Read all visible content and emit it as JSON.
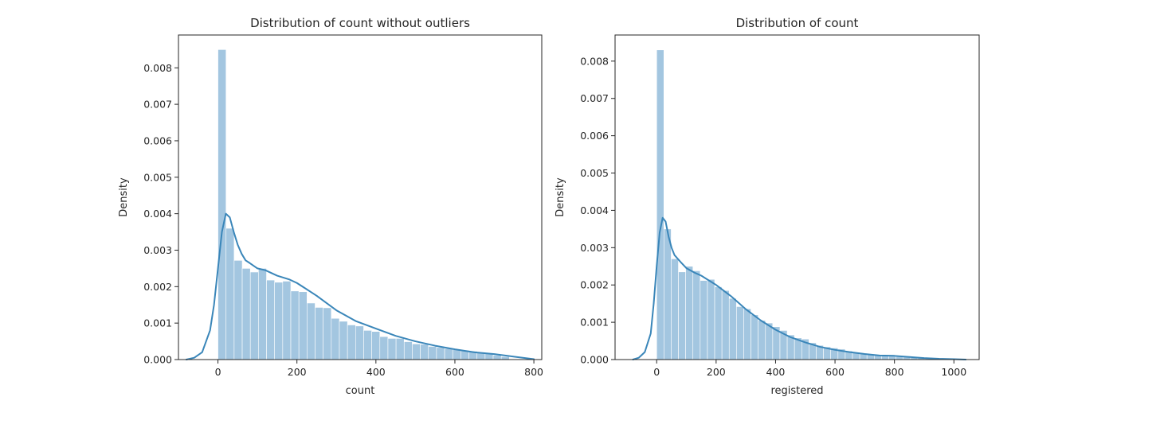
{
  "colors": {
    "bar": "#a3c6e0",
    "kde": "#3a86b9",
    "spine": "#262626",
    "text": "#262626"
  },
  "chart_data": [
    {
      "type": "histogram",
      "title": "Distribution of count without outliers",
      "xlabel": "count",
      "ylabel": "Density",
      "xlim": [
        -100,
        820
      ],
      "ylim": [
        0,
        0.0089
      ],
      "xticks": [
        0,
        200,
        400,
        600,
        800
      ],
      "yticks": [
        0.0,
        0.001,
        0.002,
        0.003,
        0.004,
        0.005,
        0.006,
        0.007,
        0.008
      ],
      "ytick_labels": [
        "0.000",
        "0.001",
        "0.002",
        "0.003",
        "0.004",
        "0.005",
        "0.006",
        "0.007",
        "0.008"
      ],
      "grid": false,
      "bin_edges": [
        0,
        20.5,
        41,
        61.5,
        82,
        102.5,
        123,
        143.5,
        164,
        184.5,
        205,
        225.5,
        246,
        266.5,
        287,
        307.5,
        328,
        348.5,
        369,
        389.5,
        410,
        430.5,
        451,
        471.5,
        492,
        512.5,
        533,
        553.5,
        574,
        594.5,
        615,
        635.5,
        656,
        676.5,
        697,
        717.5,
        738
      ],
      "bar_density": [
        0.0085,
        0.0036,
        0.00272,
        0.0025,
        0.0024,
        0.0025,
        0.00218,
        0.00212,
        0.00215,
        0.00188,
        0.00186,
        0.00155,
        0.00143,
        0.00142,
        0.00113,
        0.00105,
        0.00095,
        0.00092,
        0.0008,
        0.00077,
        0.00063,
        0.00058,
        0.00058,
        0.00049,
        0.00043,
        0.00042,
        0.00036,
        0.00033,
        0.0003,
        0.00027,
        0.00025,
        0.00023,
        0.0002,
        0.00016,
        0.00012,
        8e-05
      ],
      "kde": {
        "x": [
          -80,
          -60,
          -40,
          -20,
          -10,
          0,
          10,
          20,
          30,
          40,
          50,
          60,
          70,
          80,
          100,
          120,
          150,
          180,
          200,
          250,
          300,
          350,
          400,
          450,
          500,
          550,
          600,
          650,
          700,
          750,
          800
        ],
        "y": [
          0.0,
          5e-05,
          0.0002,
          0.0008,
          0.0015,
          0.0025,
          0.0035,
          0.004,
          0.0039,
          0.0035,
          0.00315,
          0.0029,
          0.00272,
          0.00265,
          0.0025,
          0.00245,
          0.0023,
          0.0022,
          0.0021,
          0.00175,
          0.00135,
          0.00105,
          0.00085,
          0.00065,
          0.0005,
          0.00038,
          0.00028,
          0.0002,
          0.00015,
          8e-05,
          1e-05
        ]
      }
    },
    {
      "type": "histogram",
      "title": "Distribution of count",
      "xlabel": "registered",
      "ylabel": "Density",
      "xlim": [
        -140,
        1085
      ],
      "ylim": [
        0,
        0.0087
      ],
      "xticks": [
        0,
        200,
        400,
        600,
        800,
        1000
      ],
      "yticks": [
        0.0,
        0.001,
        0.002,
        0.003,
        0.004,
        0.005,
        0.006,
        0.007,
        0.008
      ],
      "ytick_labels": [
        "0.000",
        "0.001",
        "0.002",
        "0.003",
        "0.004",
        "0.005",
        "0.006",
        "0.007",
        "0.008"
      ],
      "grid": false,
      "bin_edges": [
        0,
        24.4,
        48.8,
        73.2,
        97.6,
        122,
        146.4,
        170.8,
        195.2,
        219.6,
        244,
        268.4,
        292.8,
        317.2,
        341.6,
        366,
        390.4,
        414.8,
        439.2,
        463.6,
        488,
        512.4,
        536.8,
        561.2,
        585.6,
        610,
        634.4,
        658.8,
        683.2,
        707.6,
        732,
        756.4,
        780.8,
        805.2,
        829.6,
        854,
        878.4,
        902.8,
        927.2,
        951.6,
        976,
        1000.4,
        1024.8
      ],
      "bar_density": [
        0.0083,
        0.0035,
        0.0027,
        0.00235,
        0.0025,
        0.00238,
        0.00212,
        0.00215,
        0.00195,
        0.00185,
        0.00164,
        0.00142,
        0.00136,
        0.0012,
        0.00105,
        0.00098,
        0.00088,
        0.00078,
        0.00066,
        0.00058,
        0.00055,
        0.00045,
        0.00038,
        0.00034,
        0.00031,
        0.00028,
        0.00023,
        0.00019,
        0.00016,
        0.00014,
        0.00012,
        0.0001,
        9e-05,
        8e-05,
        7e-05,
        5e-05,
        4e-05,
        3e-05,
        2e-05,
        2e-05,
        1e-05,
        1e-05
      ],
      "kde": {
        "x": [
          -80,
          -60,
          -40,
          -20,
          -10,
          0,
          10,
          20,
          30,
          40,
          50,
          60,
          80,
          100,
          130,
          150,
          180,
          200,
          250,
          300,
          350,
          400,
          450,
          500,
          550,
          600,
          650,
          700,
          750,
          800,
          850,
          900,
          950,
          1000,
          1040
        ],
        "y": [
          0.0,
          5e-05,
          0.0002,
          0.0007,
          0.0015,
          0.0025,
          0.0034,
          0.0038,
          0.0037,
          0.0033,
          0.003,
          0.0028,
          0.00262,
          0.00245,
          0.00232,
          0.00225,
          0.0021,
          0.002,
          0.0017,
          0.00135,
          0.00105,
          0.0008,
          0.0006,
          0.00046,
          0.00034,
          0.00026,
          0.0002,
          0.00015,
          0.00011,
          0.0001,
          7e-05,
          4e-05,
          2e-05,
          1e-05,
          0.0
        ]
      }
    }
  ]
}
